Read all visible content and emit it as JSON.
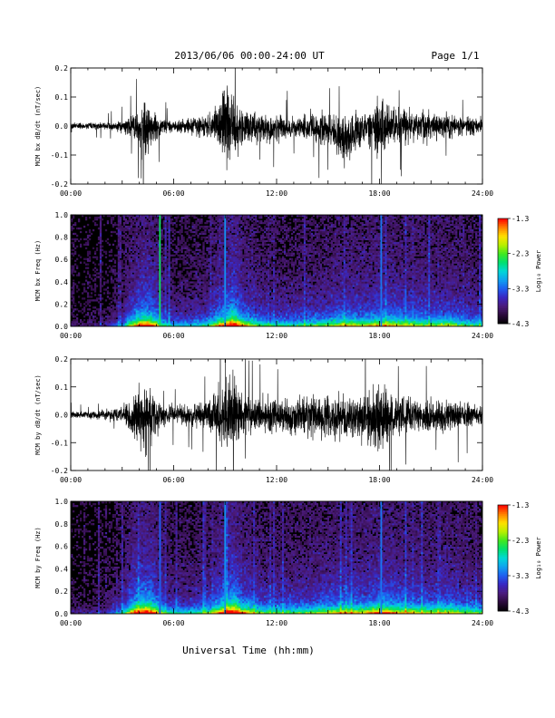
{
  "header": {
    "title": "2013/06/06  00:00-24:00 UT",
    "page": "Page 1/1"
  },
  "footer": {
    "xlabel": "Universal Time (hh:mm)"
  },
  "colors": {
    "trace": "#000000",
    "spectrogram_background": "#000000",
    "colorscale": [
      "#000000",
      "#2a0a3a",
      "#4b1b7a",
      "#3a26c0",
      "#1f5cf0",
      "#0fa0f0",
      "#00d8d8",
      "#00e070",
      "#40e820",
      "#b8f000",
      "#ffe000",
      "#ff8000",
      "#ff0000"
    ]
  },
  "chart_data": [
    {
      "type": "line",
      "name": "bx-trace",
      "ylabel": "MCM bx dB/dt (nT/sec)",
      "x_unit": "hours UT",
      "xlim": [
        0,
        24
      ],
      "ylim": [
        -0.2,
        0.2
      ],
      "xticks": [
        "00:00",
        "06:00",
        "12:00",
        "18:00",
        "24:00"
      ],
      "yticks": [
        "-0.2",
        "-0.1",
        "0.0",
        "0.1",
        "0.2"
      ],
      "ytick_values": [
        -0.2,
        -0.1,
        0.0,
        0.1,
        0.2
      ],
      "envelope": {
        "x": [
          0,
          1,
          2,
          3,
          3.5,
          4,
          4.4,
          4.6,
          5,
          5.3,
          6,
          7,
          8,
          8.5,
          9,
          9.3,
          9.6,
          10,
          11,
          12,
          13,
          14,
          15,
          16,
          17,
          17.5,
          18,
          18.5,
          19,
          20,
          21,
          22,
          23,
          24
        ],
        "upper": [
          0.015,
          0.02,
          0.02,
          0.03,
          0.06,
          0.09,
          0.15,
          0.12,
          0.06,
          0.04,
          0.03,
          0.04,
          0.06,
          0.1,
          0.22,
          0.22,
          0.16,
          0.08,
          0.07,
          0.06,
          0.05,
          0.07,
          0.07,
          0.08,
          0.09,
          0.12,
          0.15,
          0.1,
          0.09,
          0.08,
          0.07,
          0.07,
          0.05,
          0.04
        ],
        "lower": [
          -0.015,
          -0.02,
          -0.02,
          -0.03,
          -0.06,
          -0.11,
          -0.17,
          -0.12,
          -0.07,
          -0.04,
          -0.03,
          -0.04,
          -0.06,
          -0.1,
          -0.22,
          -0.22,
          -0.17,
          -0.09,
          -0.08,
          -0.07,
          -0.06,
          -0.08,
          -0.09,
          -0.18,
          -0.1,
          -0.13,
          -0.17,
          -0.1,
          -0.09,
          -0.08,
          -0.07,
          -0.07,
          -0.05,
          -0.04
        ]
      }
    },
    {
      "type": "heatmap",
      "name": "bx-spectrogram",
      "ylabel": "MCM bx Freq (Hz)",
      "xlim": [
        0,
        24
      ],
      "ylim": [
        0,
        1.0
      ],
      "xticks": [
        "00:00",
        "06:00",
        "12:00",
        "18:00",
        "24:00"
      ],
      "yticks": [
        "0.0",
        "0.2",
        "0.4",
        "0.6",
        "0.8",
        "1.0"
      ],
      "ytick_values": [
        0,
        0.2,
        0.4,
        0.6,
        0.8,
        1.0
      ],
      "colorbar": {
        "label": "Log₁₀ Power",
        "range": [
          -4.3,
          -1.3
        ],
        "ticks": [
          "-1.3",
          "-2.3",
          "-3.3",
          "-4.3"
        ],
        "tick_values": [
          -1.3,
          -2.3,
          -3.3,
          -4.3
        ]
      },
      "activity_profile": {
        "x": [
          0,
          2,
          3,
          3.5,
          4,
          4.5,
          5,
          5.5,
          6,
          7,
          8,
          9,
          9.5,
          10,
          11,
          12,
          13,
          14,
          15,
          16,
          17,
          18,
          19,
          20,
          21,
          22,
          23,
          24
        ],
        "value": [
          0.05,
          0.1,
          0.3,
          0.6,
          0.8,
          0.9,
          0.7,
          0.4,
          0.35,
          0.35,
          0.45,
          0.85,
          1.0,
          0.7,
          0.5,
          0.45,
          0.45,
          0.5,
          0.55,
          0.65,
          0.6,
          0.7,
          0.65,
          0.6,
          0.55,
          0.6,
          0.5,
          0.45
        ]
      },
      "vertical_lines": [
        {
          "x": 5.2,
          "level": -2.5
        },
        {
          "x": 9.0,
          "level": -3.1
        },
        {
          "x": 18.1,
          "level": -3.2
        }
      ]
    },
    {
      "type": "line",
      "name": "by-trace",
      "ylabel": "MCM by dB/dt (nT/sec)",
      "x_unit": "hours UT",
      "xlim": [
        0,
        24
      ],
      "ylim": [
        -0.2,
        0.2
      ],
      "xticks": [
        "00:00",
        "06:00",
        "12:00",
        "18:00",
        "24:00"
      ],
      "yticks": [
        "-0.2",
        "-0.1",
        "0.0",
        "0.1",
        "0.2"
      ],
      "ytick_values": [
        -0.2,
        -0.1,
        0.0,
        0.1,
        0.2
      ],
      "envelope": {
        "x": [
          0,
          1,
          2,
          3,
          3.5,
          4,
          4.4,
          4.6,
          5,
          5.3,
          6,
          7,
          8,
          8.5,
          9,
          9.3,
          9.6,
          10,
          11,
          12,
          13,
          14,
          15,
          16,
          17,
          17.5,
          18,
          18.5,
          19,
          20,
          21,
          22,
          23,
          24
        ],
        "upper": [
          0.02,
          0.02,
          0.025,
          0.04,
          0.08,
          0.15,
          0.2,
          0.16,
          0.1,
          0.06,
          0.05,
          0.06,
          0.08,
          0.13,
          0.22,
          0.22,
          0.18,
          0.1,
          0.09,
          0.09,
          0.09,
          0.1,
          0.1,
          0.1,
          0.12,
          0.15,
          0.17,
          0.13,
          0.1,
          0.09,
          0.08,
          0.08,
          0.06,
          0.05
        ],
        "lower": [
          -0.02,
          -0.02,
          -0.025,
          -0.04,
          -0.09,
          -0.16,
          -0.2,
          -0.17,
          -0.11,
          -0.06,
          -0.05,
          -0.06,
          -0.08,
          -0.13,
          -0.22,
          -0.22,
          -0.19,
          -0.11,
          -0.1,
          -0.1,
          -0.1,
          -0.11,
          -0.12,
          -0.12,
          -0.13,
          -0.16,
          -0.2,
          -0.14,
          -0.11,
          -0.1,
          -0.09,
          -0.09,
          -0.07,
          -0.05
        ]
      }
    },
    {
      "type": "heatmap",
      "name": "by-spectrogram",
      "ylabel": "MCM by Freq (Hz)",
      "xlim": [
        0,
        24
      ],
      "ylim": [
        0,
        1.0
      ],
      "xticks": [
        "00:00",
        "06:00",
        "12:00",
        "18:00",
        "24:00"
      ],
      "yticks": [
        "0.0",
        "0.2",
        "0.4",
        "0.6",
        "0.8",
        "1.0"
      ],
      "ytick_values": [
        0,
        0.2,
        0.4,
        0.6,
        0.8,
        1.0
      ],
      "colorbar": {
        "label": "Log₁₀ Power",
        "range": [
          -4.3,
          -1.3
        ],
        "ticks": [
          "-1.3",
          "-2.3",
          "-3.3",
          "-4.3"
        ],
        "tick_values": [
          -1.3,
          -2.3,
          -3.3,
          -4.3
        ]
      },
      "activity_profile": {
        "x": [
          0,
          2,
          3,
          3.5,
          4,
          4.5,
          5,
          5.5,
          6,
          7,
          8,
          9,
          9.5,
          10,
          11,
          12,
          13,
          14,
          15,
          16,
          17,
          18,
          19,
          20,
          21,
          22,
          23,
          24
        ],
        "value": [
          0.08,
          0.15,
          0.35,
          0.7,
          0.9,
          0.95,
          0.75,
          0.45,
          0.4,
          0.4,
          0.5,
          0.9,
          1.0,
          0.75,
          0.55,
          0.5,
          0.5,
          0.55,
          0.6,
          0.7,
          0.65,
          0.8,
          0.7,
          0.65,
          0.6,
          0.65,
          0.55,
          0.5
        ]
      },
      "vertical_lines": [
        {
          "x": 5.2,
          "level": -3.3
        },
        {
          "x": 9.0,
          "level": -3.1
        },
        {
          "x": 18.1,
          "level": -3.2
        }
      ]
    }
  ]
}
